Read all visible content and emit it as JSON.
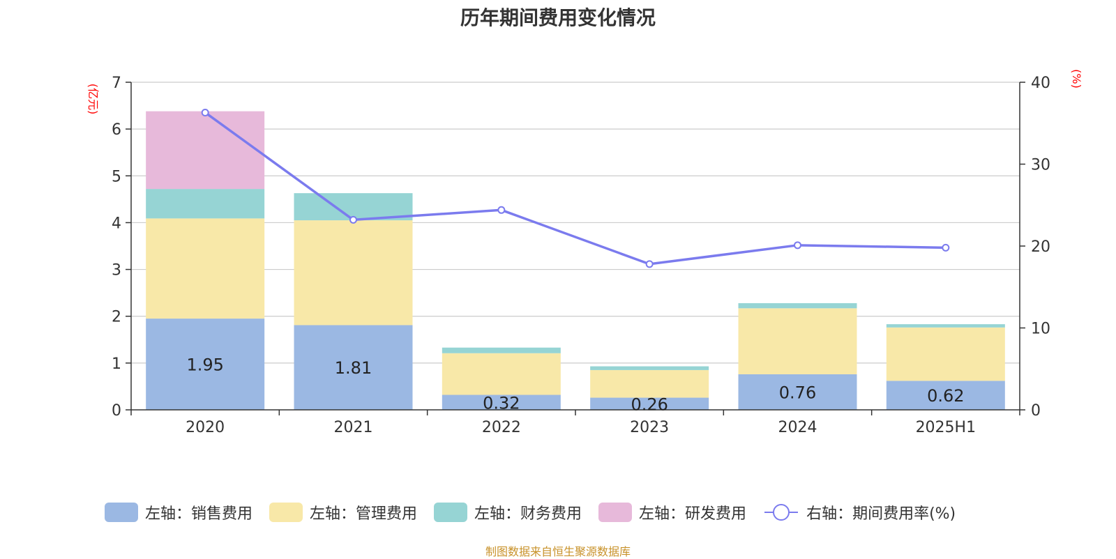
{
  "title": "历年期间费用变化情况",
  "source": "制图数据来自恒生聚源数据库",
  "chart_data": {
    "type": "bar",
    "stacked": true,
    "categories": [
      "2020",
      "2021",
      "2022",
      "2023",
      "2024",
      "2025H1"
    ],
    "left_axis": {
      "label": "(亿元)",
      "ylim": [
        0,
        7
      ],
      "ticks": [
        0,
        1,
        2,
        3,
        4,
        5,
        6,
        7
      ]
    },
    "right_axis": {
      "label": "(%)",
      "ylim": [
        0,
        40
      ],
      "ticks": [
        0,
        10,
        20,
        30,
        40
      ]
    },
    "series": [
      {
        "name": "左轴：销售费用",
        "color": "#9bb8e3",
        "values": [
          1.95,
          1.81,
          0.32,
          0.26,
          0.76,
          0.62
        ],
        "labels": [
          "1.95",
          "1.81",
          "0.32",
          "0.26",
          "0.76",
          "0.62"
        ]
      },
      {
        "name": "左轴：管理费用",
        "color": "#f8e8a8",
        "values": [
          2.14,
          2.24,
          0.89,
          0.59,
          1.41,
          1.14
        ],
        "labels": []
      },
      {
        "name": "左轴：财务费用",
        "color": "#96d4d4",
        "values": [
          0.63,
          0.58,
          0.12,
          0.08,
          0.11,
          0.07
        ],
        "labels": []
      },
      {
        "name": "左轴：研发费用",
        "color": "#e7b9da",
        "values": [
          1.66,
          0,
          0,
          0,
          0,
          0
        ],
        "labels": []
      }
    ],
    "line_series": {
      "name": "右轴：期间费用率(%)",
      "color": "#7b7bee",
      "values": [
        36.3,
        23.2,
        24.4,
        17.8,
        20.1,
        19.8
      ]
    },
    "grid": true,
    "legend_position": "bottom"
  }
}
